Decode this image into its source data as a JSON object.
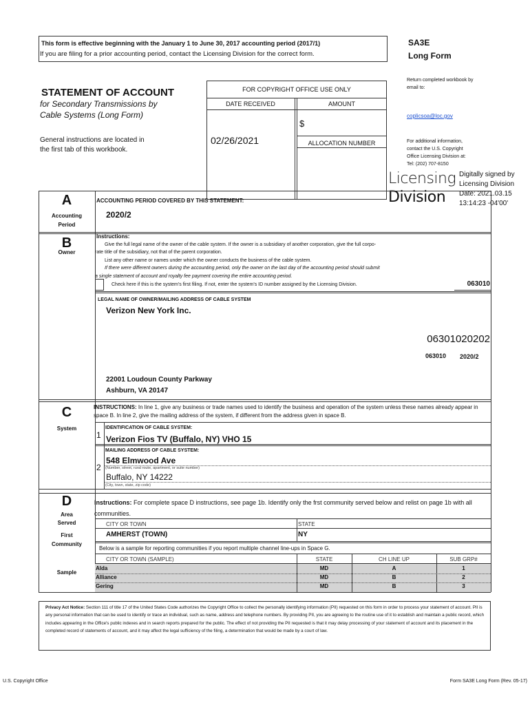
{
  "header": {
    "effective_line": "This form is effective beginning with the January 1 to June 30, 2017 accounting period (2017/1)",
    "prior_line": "If you are filing for a prior accounting period, contact the Licensing Division for the correct form.",
    "form_code": "SA3E",
    "form_type": "Long Form"
  },
  "title": {
    "main": "STATEMENT OF ACCOUNT",
    "sub1": "for Secondary Transmissions by",
    "sub2": "Cable Systems (Long Form)",
    "instr1": "General instructions are located in",
    "instr2": " the first tab of this workbook."
  },
  "office_use": {
    "heading": "FOR COPYRIGHT OFFICE USE ONLY",
    "date_received_label": "DATE RECEIVED",
    "amount_label": "AMOUNT",
    "date_received": "02/26/2021",
    "currency": "$",
    "allocation_label": "ALLOCATION NUMBER"
  },
  "contact": {
    "return1": "Return completed workbook by",
    "return2": "email to:",
    "email": "coplicsoa@loc.gov",
    "info1": "For additional information,",
    "info2": "contact the U.S. Copyright",
    "info3": "Office Licensing Division at:",
    "info4": "Tel: (202) 707-8150"
  },
  "signature": {
    "name1": "Licensing",
    "name2": "Division",
    "line1": "Digitally signed by",
    "line2": "Licensing Division",
    "line3": "Date: 2021.03.15",
    "line4": "13:14:23 -04'00'"
  },
  "section_a": {
    "letter": "A",
    "label1": "Accounting",
    "label2": "Period",
    "heading": "ACCOUNTING PERIOD COVERED BY THIS STATEMENT:",
    "period": "2020/2"
  },
  "section_b": {
    "letter": "B",
    "label": "Owner",
    "instructions_label": "Instructions:",
    "instr1": "Give the full legal name of the owner of the cable system.  If the owner is a subsidiary of another corporation, give the full corpo-",
    "instr2": "rate title of the subsidiary, not that of the parent corporation.",
    "instr3": "List any other name or names under which the owner conducts the business of the cable system.",
    "instr4": "If there were different owners during the accounting period, only the owner on the last day of the accounting period should submit",
    "instr5": "a single statement of account and royalty fee payment covering the entire accounting period.",
    "check_text": "Check here if this is the system's first filing. If not, enter the system's ID number assigned by the Licensing Division.",
    "system_id": "063010",
    "legal_name_label": "LEGAL NAME OF OWNER/MAILING ADDRESS OF CABLE SYSTEM",
    "owner_name": "Verizon New York Inc.",
    "code": "06301020202",
    "code_id": "063010",
    "code_period": "2020/2",
    "address1": "22001 Loudoun County Parkway",
    "address2": "Ashburn, VA  20147"
  },
  "section_c": {
    "letter": "C",
    "label": "System",
    "instructions_label": "INSTRUCTIONS:",
    "instructions": " In line 1, give any business or trade names used to identify the business and operation of the system unless these names already appear in space B. In line 2, give the mailing address of the system, if different from the address given in space B.",
    "line1_num": "1",
    "line1_label": "IDENTIFICATION OF CABLE SYSTEM:",
    "system_name": "Verizon Fios TV (Buffalo, NY)  VHO 15",
    "line2_num": "2",
    "line2_label": "MAILING ADDRESS OF CABLE SYSTEM:",
    "street": "548 Elmwood Ave",
    "street_hint": "(Number, street, rural route, apartment, or suite number)",
    "city": "Buffalo, NY 14222",
    "city_hint": "(City, town, state, zip code)"
  },
  "section_d": {
    "letter": "D",
    "label1": "Area",
    "label2": "Served",
    "label3": "First",
    "label4": "Community",
    "label5": "Sample",
    "instructions_label": "Instructions:",
    "instructions": " For complete space D instructions, see page 1b. Identify only the frst community served below and relist on page 1b with all communities.",
    "city_label": "CITY OR TOWN",
    "state_label": "STATE",
    "city": "AMHERST (TOWN)",
    "state": "NY",
    "sample_note": "Below is a sample for reporting communities if you report multiple channel line-ups in Space G.",
    "sample_headers": [
      "CITY OR TOWN (SAMPLE)",
      "STATE",
      "CH LINE UP",
      "SUB GRP#"
    ],
    "sample_rows": [
      [
        "Alda",
        "MD",
        "A",
        "1"
      ],
      [
        "Alliance",
        "MD",
        "B",
        "2"
      ],
      [
        "Gering",
        "MD",
        "B",
        "3"
      ]
    ]
  },
  "privacy": {
    "label": "Privacy Act Notice:",
    "text": " Section 111 of title 17 of the United States Code authorizes the Copyright Office to collect the personally identifying information (PII) requested on this form in order to process your statement of account. PII is any personal information that can be used to identify or trace an individual, such as name, address and telephone numbers. By providing PII, you are agreeing to the routine use of it to establish and maintain a public record, which includes appearing in the Office's public indexes and in search reports prepared for the public. The effect of not providing the PII requested is that it may delay processing of your statement of account and its placement in the completed record of statements of account, and it may affect the legal sufficiency of the filing, a determination that would be made by a court of law."
  },
  "footer": {
    "left": "U.S. Copyright Office",
    "right": "Form SA3E Long Form (Rev. 05-17)"
  },
  "colors": {
    "link": "#1a4fd0",
    "sample_fill": "#d4d4d4"
  }
}
